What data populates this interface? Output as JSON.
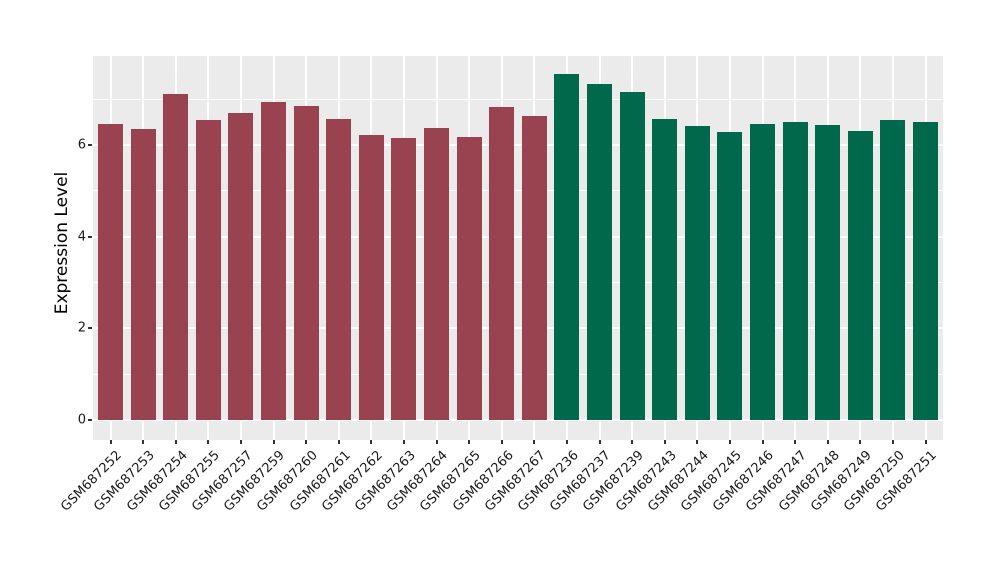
{
  "chart_data": {
    "type": "bar",
    "title": "",
    "xlabel": "",
    "ylabel": "Expression Level",
    "ylim": [
      0,
      7.94
    ],
    "yticks": [
      0,
      2,
      4,
      6
    ],
    "minor_yticks": [
      1,
      3,
      5,
      7
    ],
    "grid": "on",
    "legend": "none",
    "panel_background": "#EBEBEB",
    "gridline_color": "#ffffff",
    "categories": [
      "GSM687252",
      "GSM687253",
      "GSM687254",
      "GSM687255",
      "GSM687257",
      "GSM687259",
      "GSM687260",
      "GSM687261",
      "GSM687262",
      "GSM687263",
      "GSM687264",
      "GSM687265",
      "GSM687266",
      "GSM687267",
      "GSM687236",
      "GSM687237",
      "GSM687239",
      "GSM687243",
      "GSM687244",
      "GSM687245",
      "GSM687246",
      "GSM687247",
      "GSM687248",
      "GSM687249",
      "GSM687250",
      "GSM687251"
    ],
    "values": [
      6.45,
      6.34,
      7.11,
      6.55,
      6.7,
      6.94,
      6.85,
      6.56,
      6.22,
      6.15,
      6.37,
      6.17,
      6.83,
      6.63,
      7.55,
      7.33,
      7.16,
      6.57,
      6.42,
      6.28,
      6.46,
      6.5,
      6.44,
      6.31,
      6.55,
      6.5
    ],
    "group_of": [
      "group1",
      "group1",
      "group1",
      "group1",
      "group1",
      "group1",
      "group1",
      "group1",
      "group1",
      "group1",
      "group1",
      "group1",
      "group1",
      "group1",
      "group2",
      "group2",
      "group2",
      "group2",
      "group2",
      "group2",
      "group2",
      "group2",
      "group2",
      "group2",
      "group2",
      "group2"
    ],
    "group_colors": {
      "group1": "#9A4350",
      "group2": "#00694C"
    }
  }
}
